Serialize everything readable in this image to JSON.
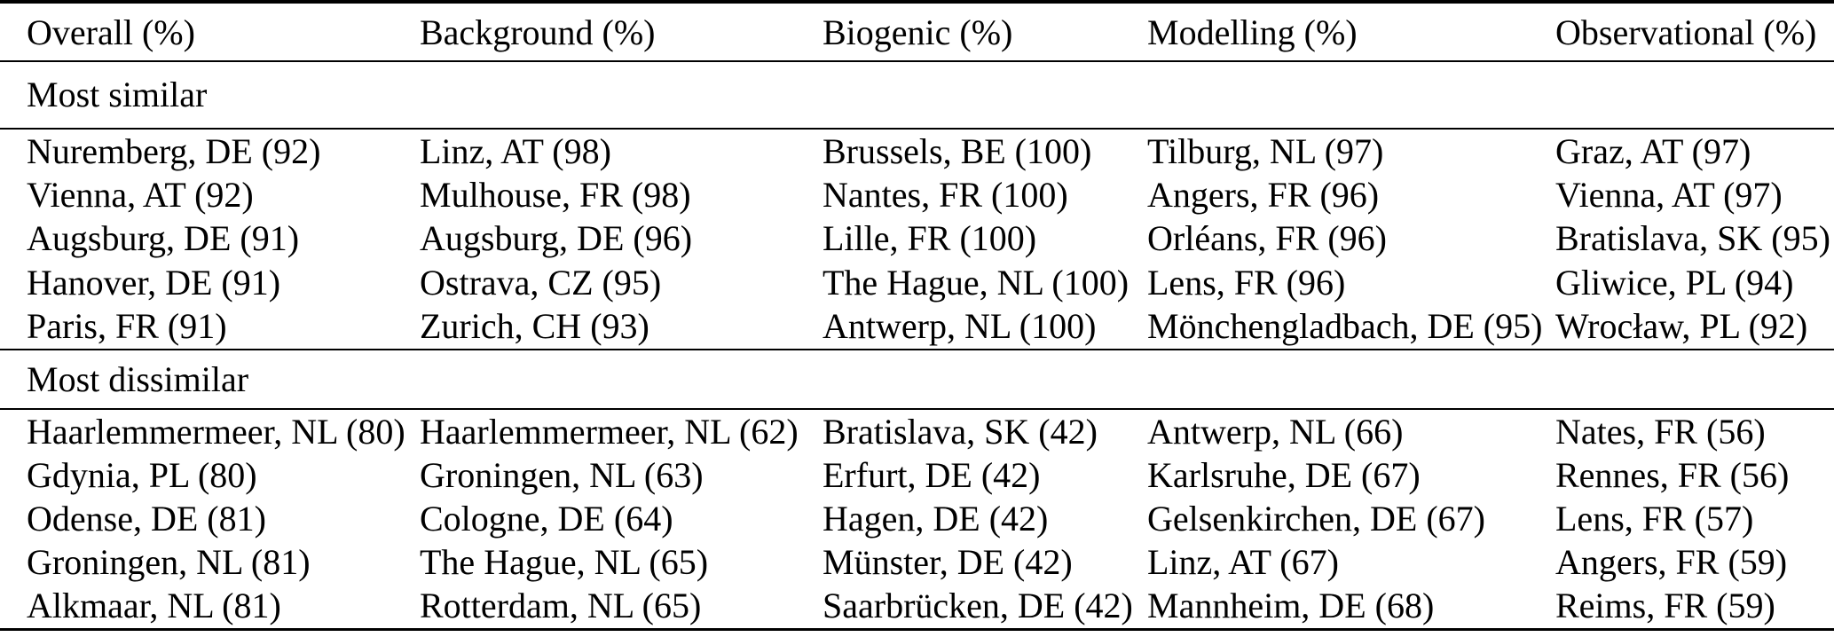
{
  "table": {
    "columns": [
      "Overall (%)",
      "Background (%)",
      "Biogenic (%)",
      "Modelling (%)",
      "Observational (%)"
    ],
    "sections": [
      {
        "label": "Most similar",
        "rows": [
          [
            "Nuremberg, DE (92)",
            "Linz, AT (98)",
            "Brussels, BE (100)",
            "Tilburg, NL (97)",
            "Graz, AT (97)"
          ],
          [
            "Vienna, AT (92)",
            "Mulhouse, FR (98)",
            "Nantes, FR (100)",
            "Angers, FR (96)",
            "Vienna, AT (97)"
          ],
          [
            "Augsburg, DE (91)",
            "Augsburg, DE (96)",
            "Lille, FR (100)",
            "Orléans, FR (96)",
            "Bratislava, SK (95)"
          ],
          [
            "Hanover, DE (91)",
            "Ostrava, CZ (95)",
            "The Hague, NL (100)",
            "Lens, FR (96)",
            "Gliwice, PL (94)"
          ],
          [
            "Paris, FR (91)",
            "Zurich, CH (93)",
            "Antwerp, NL (100)",
            "Mönchengladbach, DE (95)",
            "Wrocław, PL (92)"
          ]
        ]
      },
      {
        "label": "Most dissimilar",
        "rows": [
          [
            "Haarlemmermeer, NL (80)",
            "Haarlemmermeer, NL (62)",
            "Bratislava, SK (42)",
            "Antwerp, NL (66)",
            "Nates, FR (56)"
          ],
          [
            "Gdynia, PL (80)",
            "Groningen, NL (63)",
            "Erfurt, DE (42)",
            "Karlsruhe, DE (67)",
            "Rennes, FR (56)"
          ],
          [
            "Odense, DE (81)",
            "Cologne, DE (64)",
            "Hagen, DE (42)",
            "Gelsenkirchen, DE (67)",
            "Lens, FR (57)"
          ],
          [
            "Groningen, NL (81)",
            "The Hague, NL (65)",
            "Münster, DE (42)",
            "Linz, AT (67)",
            "Angers, FR (59)"
          ],
          [
            "Alkmaar, NL (81)",
            "Rotterdam, NL (65)",
            "Saarbrücken, DE (42)",
            "Mannheim, DE (68)",
            "Reims, FR (59)"
          ]
        ]
      }
    ]
  }
}
